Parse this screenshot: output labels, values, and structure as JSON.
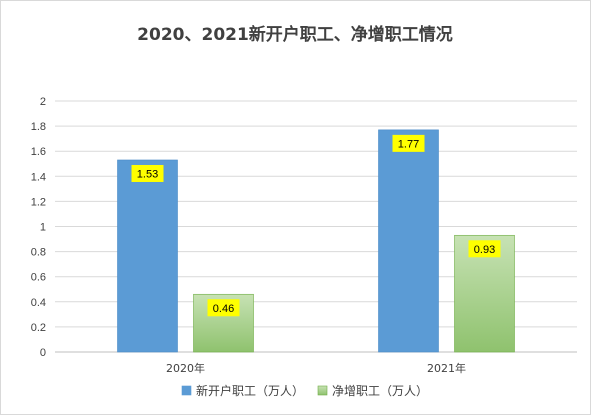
{
  "chart_data": {
    "type": "bar",
    "title": "2020、2021新开户职工、净增职工情况",
    "categories": [
      "2020年",
      "2021年"
    ],
    "series": [
      {
        "name": "新开户职工（万人）",
        "values": [
          1.53,
          1.77
        ],
        "color": "#5b9bd5",
        "fill": "solid"
      },
      {
        "name": "净增职工（万人）",
        "values": [
          0.46,
          0.93
        ],
        "color": "#a9d18e",
        "fill": "gradient"
      }
    ],
    "ylim": [
      0,
      2
    ],
    "yticks": [
      "0",
      "0.2",
      "0.4",
      "0.6",
      "0.8",
      "1",
      "1.2",
      "1.4",
      "1.6",
      "1.8",
      "2"
    ],
    "ytick_values": [
      0,
      0.2,
      0.4,
      0.6,
      0.8,
      1,
      1.2,
      1.4,
      1.6,
      1.8,
      2
    ],
    "grid": true,
    "legend_position": "bottom",
    "data_label_bg": "#ffff00",
    "xlabel": "",
    "ylabel": ""
  }
}
